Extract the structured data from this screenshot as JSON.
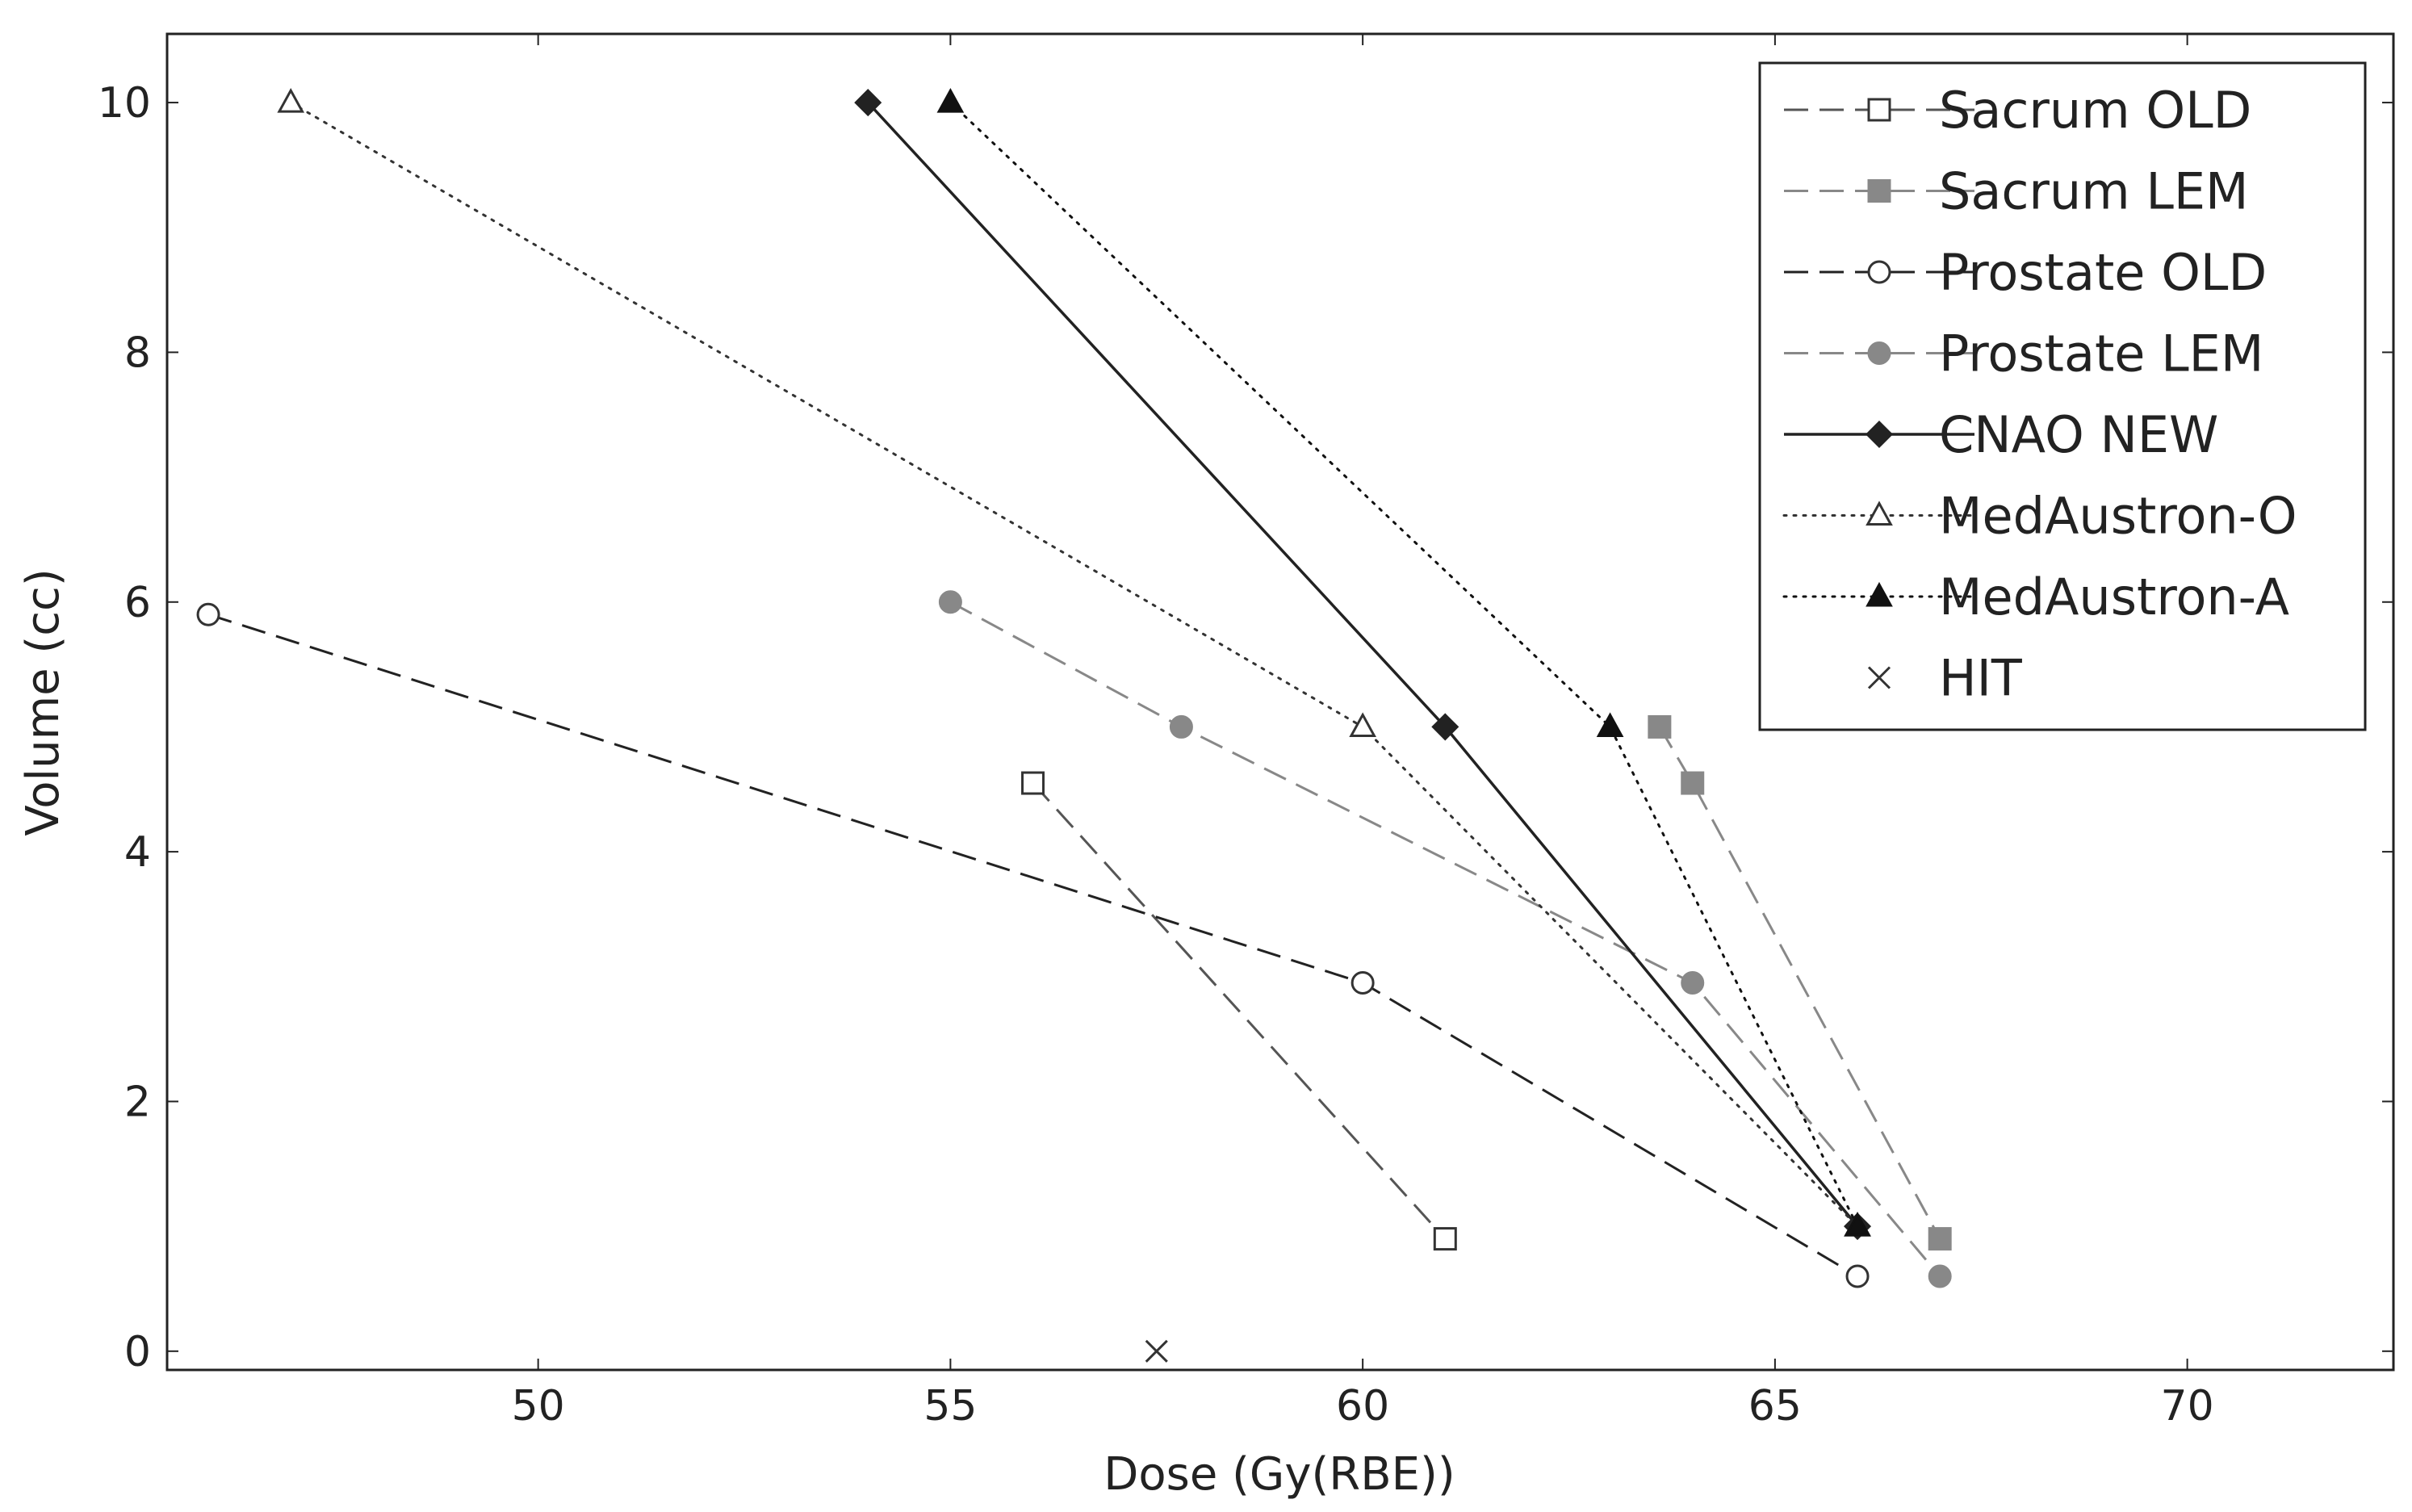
{
  "chart_data": {
    "type": "line",
    "title": "",
    "xlabel": "Dose (Gy(RBE))",
    "ylabel": "Volume (cc)",
    "xlim": [
      45.5,
      72.5
    ],
    "ylim": [
      -0.15,
      10.55
    ],
    "xticks": [
      50,
      55,
      60,
      65,
      70
    ],
    "yticks": [
      0,
      2,
      4,
      6,
      8,
      10
    ],
    "xtick_labels": [
      "50",
      "55",
      "60",
      "65",
      "70"
    ],
    "ytick_labels": [
      "0",
      "2",
      "4",
      "6",
      "8",
      "10"
    ],
    "grid": false,
    "legend_position": "top-right",
    "series": [
      {
        "name": "Sacrum OLD",
        "color": "#555555",
        "line": "dashed",
        "marker": "square-open",
        "x": [
          56.0,
          61.0
        ],
        "y": [
          4.55,
          0.9
        ]
      },
      {
        "name": "Sacrum LEM",
        "color": "#888888",
        "line": "dashed",
        "marker": "square-filled",
        "x": [
          63.6,
          64.0,
          67.0
        ],
        "y": [
          5.0,
          4.55,
          0.9
        ]
      },
      {
        "name": "Prostate OLD",
        "color": "#222222",
        "line": "dashed",
        "marker": "circle-open",
        "x": [
          46.0,
          60.0,
          66.0
        ],
        "y": [
          5.9,
          2.95,
          0.6
        ]
      },
      {
        "name": "Prostate LEM",
        "color": "#888888",
        "line": "dashed",
        "marker": "circle-filled",
        "x": [
          55.0,
          57.8,
          64.0,
          67.0
        ],
        "y": [
          6.0,
          5.0,
          2.95,
          0.6
        ]
      },
      {
        "name": "CNAO NEW",
        "color": "#222222",
        "line": "solid",
        "marker": "diamond-filled",
        "x": [
          54.0,
          61.0,
          66.0
        ],
        "y": [
          10.0,
          5.0,
          1.0
        ]
      },
      {
        "name": "MedAustron-O",
        "color": "#333333",
        "line": "dotted",
        "marker": "triangle-open",
        "x": [
          47.0,
          60.0,
          66.0
        ],
        "y": [
          10.0,
          5.0,
          1.0
        ]
      },
      {
        "name": "MedAustron-A",
        "color": "#111111",
        "line": "dotted",
        "marker": "triangle-filled",
        "x": [
          55.0,
          63.0,
          66.0
        ],
        "y": [
          10.0,
          5.0,
          1.0
        ]
      },
      {
        "name": "HIT",
        "color": "#333333",
        "line": "none",
        "marker": "x",
        "x": [
          57.5
        ],
        "y": [
          0.0
        ]
      }
    ]
  }
}
